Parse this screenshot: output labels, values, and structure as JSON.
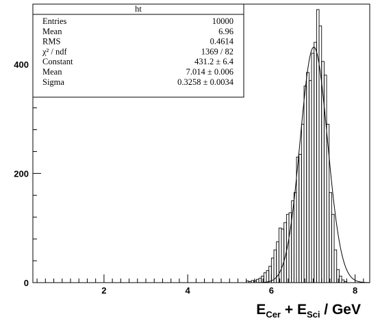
{
  "chart_data": {
    "type": "histogram",
    "title": "ht",
    "xlabel": {
      "base1": "E",
      "sub1": "Cer",
      "plus": " + ",
      "base2": "E",
      "sub2": "Sci",
      "tail": " / GeV"
    },
    "xlim": [
      0.3,
      8.35
    ],
    "ylim": [
      0,
      510
    ],
    "xticks": [
      2,
      4,
      6,
      8
    ],
    "yticks": [
      0,
      200,
      400
    ],
    "bin_width": 0.06,
    "histogram": {
      "bin_edges_start": 5.4,
      "counts": [
        3,
        2,
        4,
        3,
        6,
        8,
        12,
        18,
        22,
        30,
        45,
        60,
        75,
        100,
        98,
        110,
        125,
        128,
        150,
        165,
        230,
        235,
        290,
        360,
        385,
        370,
        420,
        440,
        500,
        470,
        405,
        380,
        290,
        165,
        125,
        60,
        24,
        12,
        5,
        2
      ]
    },
    "fit": {
      "function": "gaus",
      "constant": 431.2,
      "mean": 7.014,
      "sigma": 0.3258
    },
    "stats": [
      {
        "label": "Entries",
        "value": "10000"
      },
      {
        "label": "Mean",
        "value": "6.96"
      },
      {
        "label": "RMS",
        "value": "0.4614"
      },
      {
        "label": "χ² / ndf",
        "value": "1369 / 82"
      },
      {
        "label": "Constant",
        "value": "431.2 ± 6.4"
      },
      {
        "label": "Mean",
        "value": "7.014 ± 0.006"
      },
      {
        "label": "Sigma",
        "value": "0.3258 ± 0.0034"
      }
    ]
  }
}
